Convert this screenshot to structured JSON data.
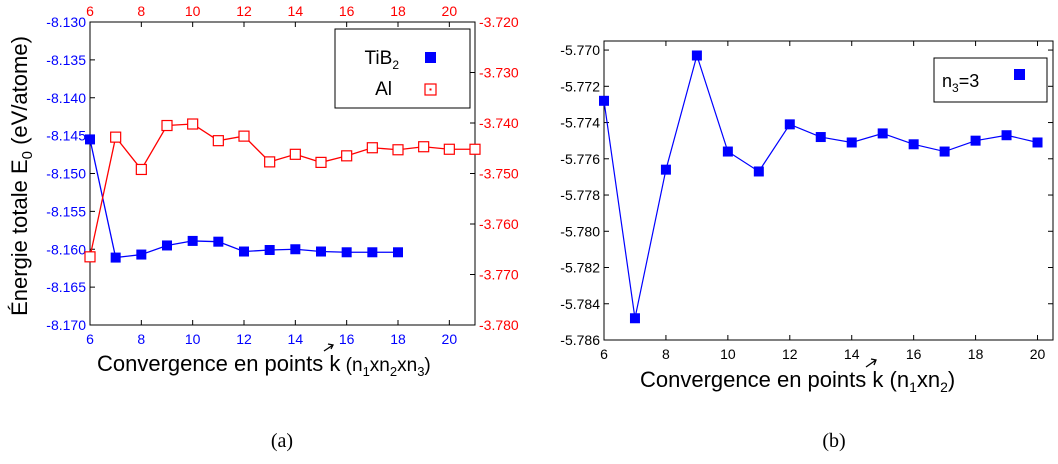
{
  "chart_data": [
    {
      "type": "line",
      "panel_caption": "(a)",
      "xlabel": "Convergence en points k (n1xn2xn3)",
      "xlabel_parts": {
        "pre": "Convergence en points ",
        "k": "k",
        "paren_open": " (n",
        "s1": "1",
        "x1": "xn",
        "s2": "2",
        "x2": "xn",
        "s3": "3",
        "paren_close": ")"
      },
      "ylabel": "Énergie totale E0 (eV/atome)",
      "ylabel_parts": {
        "pre": "Énergie totale E",
        "sub": "0",
        "post": " (eV/atome)"
      },
      "x_bottom_lim": [
        6,
        21
      ],
      "x_bottom_ticks": [
        "6",
        "8",
        "10",
        "12",
        "14",
        "16",
        "18",
        "20"
      ],
      "x_top_lim": [
        6,
        21
      ],
      "x_top_ticks": [
        "6",
        "8",
        "10",
        "12",
        "14",
        "16",
        "18",
        "20"
      ],
      "ylim_left": [
        -8.17,
        -8.13
      ],
      "yticks_left": [
        "-8.170",
        "-8.165",
        "-8.160",
        "-8.155",
        "-8.150",
        "-8.145",
        "-8.140",
        "-8.135",
        "-8.130"
      ],
      "ylim_right": [
        -3.78,
        -3.72
      ],
      "yticks_right": [
        "-3.780",
        "-3.770",
        "-3.760",
        "-3.750",
        "-3.740",
        "-3.730",
        "-3.720"
      ],
      "legend_position": "top-right",
      "series": [
        {
          "name": "TiB2",
          "name_parts": {
            "main": "TiB",
            "sub": "2"
          },
          "axis": "left-bottom",
          "color": "#0000ff",
          "marker": "filled-square",
          "x": [
            6,
            7,
            8,
            9,
            10,
            11,
            12,
            13,
            14,
            15,
            16,
            17,
            18
          ],
          "y": [
            -8.1455,
            -8.1611,
            -8.1607,
            -8.1595,
            -8.1589,
            -8.159,
            -8.1603,
            -8.1601,
            -8.16,
            -8.1603,
            -8.1604,
            -8.1604,
            -8.1604
          ]
        },
        {
          "name": "Al",
          "axis": "right-top",
          "color": "#ff0000",
          "marker": "open-square",
          "x": [
            6,
            7,
            8,
            9,
            10,
            11,
            12,
            13,
            14,
            15,
            16,
            17,
            18,
            19,
            20,
            21
          ],
          "y": [
            -3.7665,
            -3.7428,
            -3.7492,
            -3.7405,
            -3.7402,
            -3.7435,
            -3.7426,
            -3.7477,
            -3.7462,
            -3.7478,
            -3.7465,
            -3.7449,
            -3.7453,
            -3.7447,
            -3.7452,
            -3.7452
          ]
        }
      ]
    },
    {
      "type": "line",
      "panel_caption": "(b)",
      "xlabel": "Convergence en points k (n1xn2)",
      "xlabel_parts": {
        "pre": "Convergence en points ",
        "k": "k",
        "paren_open": " (n",
        "s1": "1",
        "x1": "xn",
        "s2": "2",
        "paren_close": ")"
      },
      "xlim": [
        6,
        20.5
      ],
      "xticks": [
        "6",
        "8",
        "10",
        "12",
        "14",
        "16",
        "18",
        "20"
      ],
      "ylim": [
        -5.786,
        -5.7695
      ],
      "yticks": [
        "-5.786",
        "-5.784",
        "-5.782",
        "-5.780",
        "-5.778",
        "-5.776",
        "-5.774",
        "-5.772",
        "-5.770"
      ],
      "legend_position": "top-right",
      "series": [
        {
          "name": "n3=3",
          "name_parts": {
            "pre": "n",
            "sub": "3",
            "post": "=3"
          },
          "color": "#0000ff",
          "marker": "filled-square",
          "x": [
            6,
            7,
            8,
            9,
            10,
            11,
            12,
            13,
            14,
            15,
            16,
            17,
            18,
            19,
            20
          ],
          "y": [
            -5.7728,
            -5.7848,
            -5.7766,
            -5.7703,
            -5.7756,
            -5.7767,
            -5.7741,
            -5.7748,
            -5.7751,
            -5.7746,
            -5.7752,
            -5.7756,
            -5.775,
            -5.7747,
            -5.7751
          ]
        }
      ]
    }
  ]
}
